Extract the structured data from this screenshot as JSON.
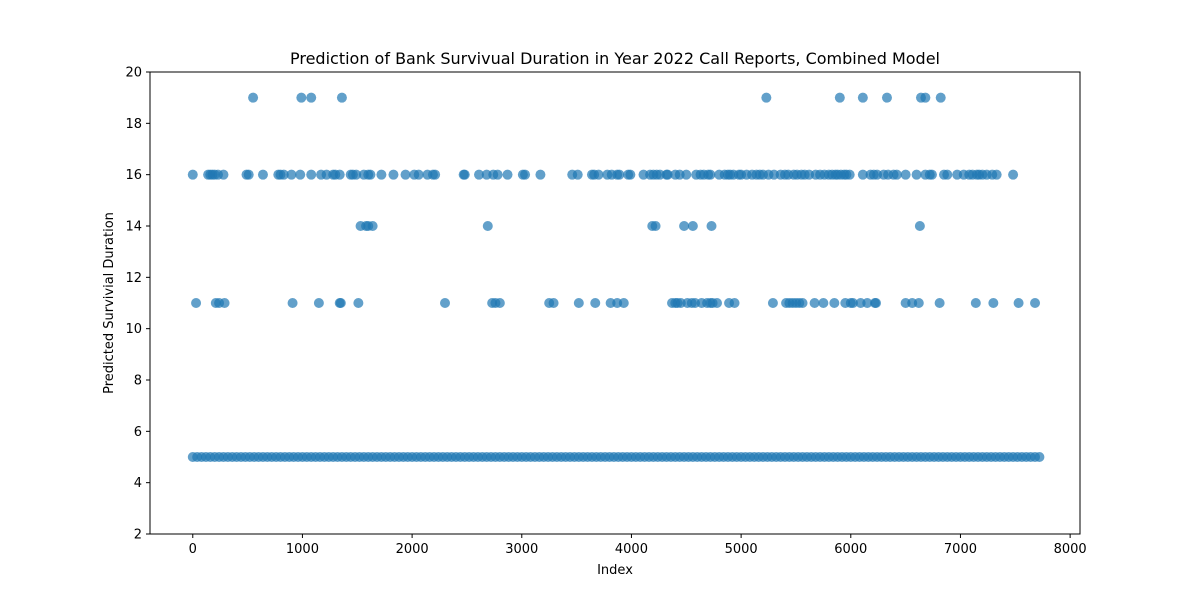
{
  "chart_data": {
    "type": "scatter",
    "title": "Prediction of Bank Survivual Duration in Year 2022 Call Reports, Combined Model",
    "xlabel": "Index",
    "ylabel": "Predicted Survivial Duration",
    "xlim": [
      -390,
      8090
    ],
    "ylim": [
      2,
      20
    ],
    "xticks": [
      0,
      1000,
      2000,
      3000,
      4000,
      5000,
      6000,
      7000,
      8000
    ],
    "yticks": [
      2,
      4,
      6,
      8,
      10,
      12,
      14,
      16,
      18,
      20
    ],
    "grid": false,
    "marker_color": "#1f77b4",
    "marker_opacity": 0.7,
    "baseline": {
      "y": 5,
      "x_start": 0,
      "x_end": 7730
    },
    "series": [
      {
        "name": "",
        "points": [
          {
            "x": 0,
            "y": 16
          },
          {
            "x": 140,
            "y": 16
          },
          {
            "x": 160,
            "y": 16
          },
          {
            "x": 180,
            "y": 16
          },
          {
            "x": 200,
            "y": 16
          },
          {
            "x": 230,
            "y": 16
          },
          {
            "x": 280,
            "y": 16
          },
          {
            "x": 490,
            "y": 16
          },
          {
            "x": 510,
            "y": 16
          },
          {
            "x": 640,
            "y": 16
          },
          {
            "x": 780,
            "y": 16
          },
          {
            "x": 800,
            "y": 16
          },
          {
            "x": 830,
            "y": 16
          },
          {
            "x": 900,
            "y": 16
          },
          {
            "x": 980,
            "y": 16
          },
          {
            "x": 1080,
            "y": 16
          },
          {
            "x": 1170,
            "y": 16
          },
          {
            "x": 1220,
            "y": 16
          },
          {
            "x": 1280,
            "y": 16
          },
          {
            "x": 1300,
            "y": 16
          },
          {
            "x": 1340,
            "y": 16
          },
          {
            "x": 1440,
            "y": 16
          },
          {
            "x": 1460,
            "y": 16
          },
          {
            "x": 1490,
            "y": 16
          },
          {
            "x": 1560,
            "y": 16
          },
          {
            "x": 1600,
            "y": 16
          },
          {
            "x": 1620,
            "y": 16
          },
          {
            "x": 1720,
            "y": 16
          },
          {
            "x": 1830,
            "y": 16
          },
          {
            "x": 1940,
            "y": 16
          },
          {
            "x": 2020,
            "y": 16
          },
          {
            "x": 2060,
            "y": 16
          },
          {
            "x": 2140,
            "y": 16
          },
          {
            "x": 2190,
            "y": 16
          },
          {
            "x": 2210,
            "y": 16
          },
          {
            "x": 2470,
            "y": 16
          },
          {
            "x": 2480,
            "y": 16
          },
          {
            "x": 2610,
            "y": 16
          },
          {
            "x": 2680,
            "y": 16
          },
          {
            "x": 2740,
            "y": 16
          },
          {
            "x": 2780,
            "y": 16
          },
          {
            "x": 2870,
            "y": 16
          },
          {
            "x": 3010,
            "y": 16
          },
          {
            "x": 3030,
            "y": 16
          },
          {
            "x": 3170,
            "y": 16
          },
          {
            "x": 3460,
            "y": 16
          },
          {
            "x": 3510,
            "y": 16
          },
          {
            "x": 3640,
            "y": 16
          },
          {
            "x": 3660,
            "y": 16
          },
          {
            "x": 3700,
            "y": 16
          },
          {
            "x": 3780,
            "y": 16
          },
          {
            "x": 3820,
            "y": 16
          },
          {
            "x": 3870,
            "y": 16
          },
          {
            "x": 3890,
            "y": 16
          },
          {
            "x": 3970,
            "y": 16
          },
          {
            "x": 3990,
            "y": 16
          },
          {
            "x": 4110,
            "y": 16
          },
          {
            "x": 4170,
            "y": 16
          },
          {
            "x": 4200,
            "y": 16
          },
          {
            "x": 4230,
            "y": 16
          },
          {
            "x": 4260,
            "y": 16
          },
          {
            "x": 4320,
            "y": 16
          },
          {
            "x": 4330,
            "y": 16
          },
          {
            "x": 4400,
            "y": 16
          },
          {
            "x": 4440,
            "y": 16
          },
          {
            "x": 4500,
            "y": 16
          },
          {
            "x": 4590,
            "y": 16
          },
          {
            "x": 4630,
            "y": 16
          },
          {
            "x": 4660,
            "y": 16
          },
          {
            "x": 4700,
            "y": 16
          },
          {
            "x": 4720,
            "y": 16
          },
          {
            "x": 4800,
            "y": 16
          },
          {
            "x": 4850,
            "y": 16
          },
          {
            "x": 4880,
            "y": 16
          },
          {
            "x": 4900,
            "y": 16
          },
          {
            "x": 4930,
            "y": 16
          },
          {
            "x": 4980,
            "y": 16
          },
          {
            "x": 5000,
            "y": 16
          },
          {
            "x": 5050,
            "y": 16
          },
          {
            "x": 5100,
            "y": 16
          },
          {
            "x": 5140,
            "y": 16
          },
          {
            "x": 5170,
            "y": 16
          },
          {
            "x": 5200,
            "y": 16
          },
          {
            "x": 5250,
            "y": 16
          },
          {
            "x": 5300,
            "y": 16
          },
          {
            "x": 5360,
            "y": 16
          },
          {
            "x": 5400,
            "y": 16
          },
          {
            "x": 5430,
            "y": 16
          },
          {
            "x": 5480,
            "y": 16
          },
          {
            "x": 5510,
            "y": 16
          },
          {
            "x": 5550,
            "y": 16
          },
          {
            "x": 5580,
            "y": 16
          },
          {
            "x": 5620,
            "y": 16
          },
          {
            "x": 5680,
            "y": 16
          },
          {
            "x": 5720,
            "y": 16
          },
          {
            "x": 5760,
            "y": 16
          },
          {
            "x": 5800,
            "y": 16
          },
          {
            "x": 5830,
            "y": 16
          },
          {
            "x": 5860,
            "y": 16
          },
          {
            "x": 5880,
            "y": 16
          },
          {
            "x": 5910,
            "y": 16
          },
          {
            "x": 5940,
            "y": 16
          },
          {
            "x": 5960,
            "y": 16
          },
          {
            "x": 5990,
            "y": 16
          },
          {
            "x": 6110,
            "y": 16
          },
          {
            "x": 6180,
            "y": 16
          },
          {
            "x": 6210,
            "y": 16
          },
          {
            "x": 6240,
            "y": 16
          },
          {
            "x": 6300,
            "y": 16
          },
          {
            "x": 6340,
            "y": 16
          },
          {
            "x": 6390,
            "y": 16
          },
          {
            "x": 6420,
            "y": 16
          },
          {
            "x": 6500,
            "y": 16
          },
          {
            "x": 6600,
            "y": 16
          },
          {
            "x": 6680,
            "y": 16
          },
          {
            "x": 6720,
            "y": 16
          },
          {
            "x": 6740,
            "y": 16
          },
          {
            "x": 6850,
            "y": 16
          },
          {
            "x": 6880,
            "y": 16
          },
          {
            "x": 6970,
            "y": 16
          },
          {
            "x": 7030,
            "y": 16
          },
          {
            "x": 7080,
            "y": 16
          },
          {
            "x": 7110,
            "y": 16
          },
          {
            "x": 7150,
            "y": 16
          },
          {
            "x": 7170,
            "y": 16
          },
          {
            "x": 7200,
            "y": 16
          },
          {
            "x": 7240,
            "y": 16
          },
          {
            "x": 7290,
            "y": 16
          },
          {
            "x": 7330,
            "y": 16
          },
          {
            "x": 7480,
            "y": 16
          },
          {
            "x": 550,
            "y": 19
          },
          {
            "x": 990,
            "y": 19
          },
          {
            "x": 1080,
            "y": 19
          },
          {
            "x": 1360,
            "y": 19
          },
          {
            "x": 5230,
            "y": 19
          },
          {
            "x": 5900,
            "y": 19
          },
          {
            "x": 6110,
            "y": 19
          },
          {
            "x": 6330,
            "y": 19
          },
          {
            "x": 6640,
            "y": 19
          },
          {
            "x": 6680,
            "y": 19
          },
          {
            "x": 6820,
            "y": 19
          },
          {
            "x": 1530,
            "y": 14
          },
          {
            "x": 1580,
            "y": 14
          },
          {
            "x": 1600,
            "y": 14
          },
          {
            "x": 1640,
            "y": 14
          },
          {
            "x": 2690,
            "y": 14
          },
          {
            "x": 4190,
            "y": 14
          },
          {
            "x": 4220,
            "y": 14
          },
          {
            "x": 4480,
            "y": 14
          },
          {
            "x": 4560,
            "y": 14
          },
          {
            "x": 4730,
            "y": 14
          },
          {
            "x": 6630,
            "y": 14
          },
          {
            "x": 30,
            "y": 11
          },
          {
            "x": 210,
            "y": 11
          },
          {
            "x": 240,
            "y": 11
          },
          {
            "x": 290,
            "y": 11
          },
          {
            "x": 910,
            "y": 11
          },
          {
            "x": 1150,
            "y": 11
          },
          {
            "x": 1340,
            "y": 11
          },
          {
            "x": 1350,
            "y": 11
          },
          {
            "x": 1510,
            "y": 11
          },
          {
            "x": 2300,
            "y": 11
          },
          {
            "x": 2730,
            "y": 11
          },
          {
            "x": 2760,
            "y": 11
          },
          {
            "x": 2800,
            "y": 11
          },
          {
            "x": 3250,
            "y": 11
          },
          {
            "x": 3290,
            "y": 11
          },
          {
            "x": 3520,
            "y": 11
          },
          {
            "x": 3670,
            "y": 11
          },
          {
            "x": 3810,
            "y": 11
          },
          {
            "x": 3870,
            "y": 11
          },
          {
            "x": 3930,
            "y": 11
          },
          {
            "x": 4370,
            "y": 11
          },
          {
            "x": 4400,
            "y": 11
          },
          {
            "x": 4420,
            "y": 11
          },
          {
            "x": 4450,
            "y": 11
          },
          {
            "x": 4510,
            "y": 11
          },
          {
            "x": 4550,
            "y": 11
          },
          {
            "x": 4580,
            "y": 11
          },
          {
            "x": 4640,
            "y": 11
          },
          {
            "x": 4690,
            "y": 11
          },
          {
            "x": 4720,
            "y": 11
          },
          {
            "x": 4740,
            "y": 11
          },
          {
            "x": 4780,
            "y": 11
          },
          {
            "x": 4890,
            "y": 11
          },
          {
            "x": 4940,
            "y": 11
          },
          {
            "x": 5290,
            "y": 11
          },
          {
            "x": 5410,
            "y": 11
          },
          {
            "x": 5440,
            "y": 11
          },
          {
            "x": 5470,
            "y": 11
          },
          {
            "x": 5500,
            "y": 11
          },
          {
            "x": 5530,
            "y": 11
          },
          {
            "x": 5560,
            "y": 11
          },
          {
            "x": 5670,
            "y": 11
          },
          {
            "x": 5750,
            "y": 11
          },
          {
            "x": 5850,
            "y": 11
          },
          {
            "x": 5950,
            "y": 11
          },
          {
            "x": 6000,
            "y": 11
          },
          {
            "x": 6020,
            "y": 11
          },
          {
            "x": 6090,
            "y": 11
          },
          {
            "x": 6150,
            "y": 11
          },
          {
            "x": 6220,
            "y": 11
          },
          {
            "x": 6230,
            "y": 11
          },
          {
            "x": 6500,
            "y": 11
          },
          {
            "x": 6560,
            "y": 11
          },
          {
            "x": 6620,
            "y": 11
          },
          {
            "x": 6810,
            "y": 11
          },
          {
            "x": 7140,
            "y": 11
          },
          {
            "x": 7300,
            "y": 11
          },
          {
            "x": 7530,
            "y": 11
          },
          {
            "x": 7680,
            "y": 11
          }
        ]
      }
    ]
  }
}
